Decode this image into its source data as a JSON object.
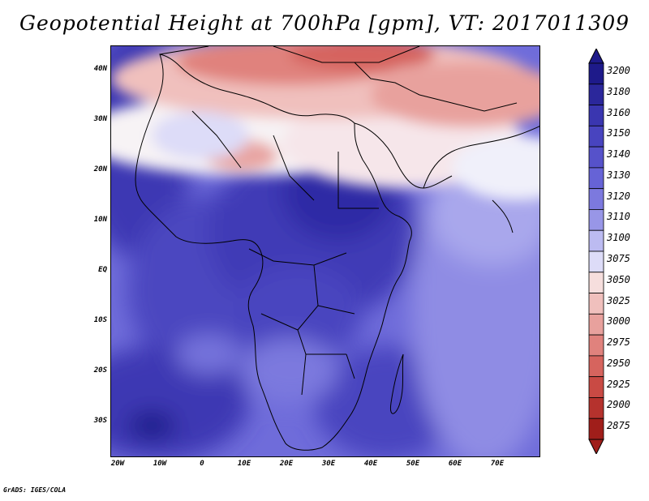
{
  "title": "Geopotential Height at 700hPa [gpm], VT: 2017011309",
  "credit": "GrADS: IGES/COLA",
  "lat_labels": [
    "40N",
    "30N",
    "20N",
    "10N",
    "EQ",
    "10S",
    "20S",
    "30S"
  ],
  "lon_labels": [
    "20W",
    "10W",
    "0",
    "10E",
    "20E",
    "30E",
    "40E",
    "50E",
    "60E",
    "70E"
  ],
  "legend": {
    "levels": [
      "3200",
      "3180",
      "3160",
      "3150",
      "3140",
      "3130",
      "3120",
      "3110",
      "3100",
      "3075",
      "3050",
      "3025",
      "3000",
      "2975",
      "2950",
      "2925",
      "2900",
      "2875"
    ],
    "colors": [
      "#1e1a8a",
      "#2b279b",
      "#3a36b0",
      "#4844bf",
      "#5652ca",
      "#6663d6",
      "#7c79de",
      "#9896e7",
      "#bcbbf1",
      "#dddcf8",
      "#f6dedd",
      "#f0c0bd",
      "#e8a19d",
      "#e0827d",
      "#d6645e",
      "#c94a44",
      "#b5322d",
      "#a01e1a"
    ]
  }
}
